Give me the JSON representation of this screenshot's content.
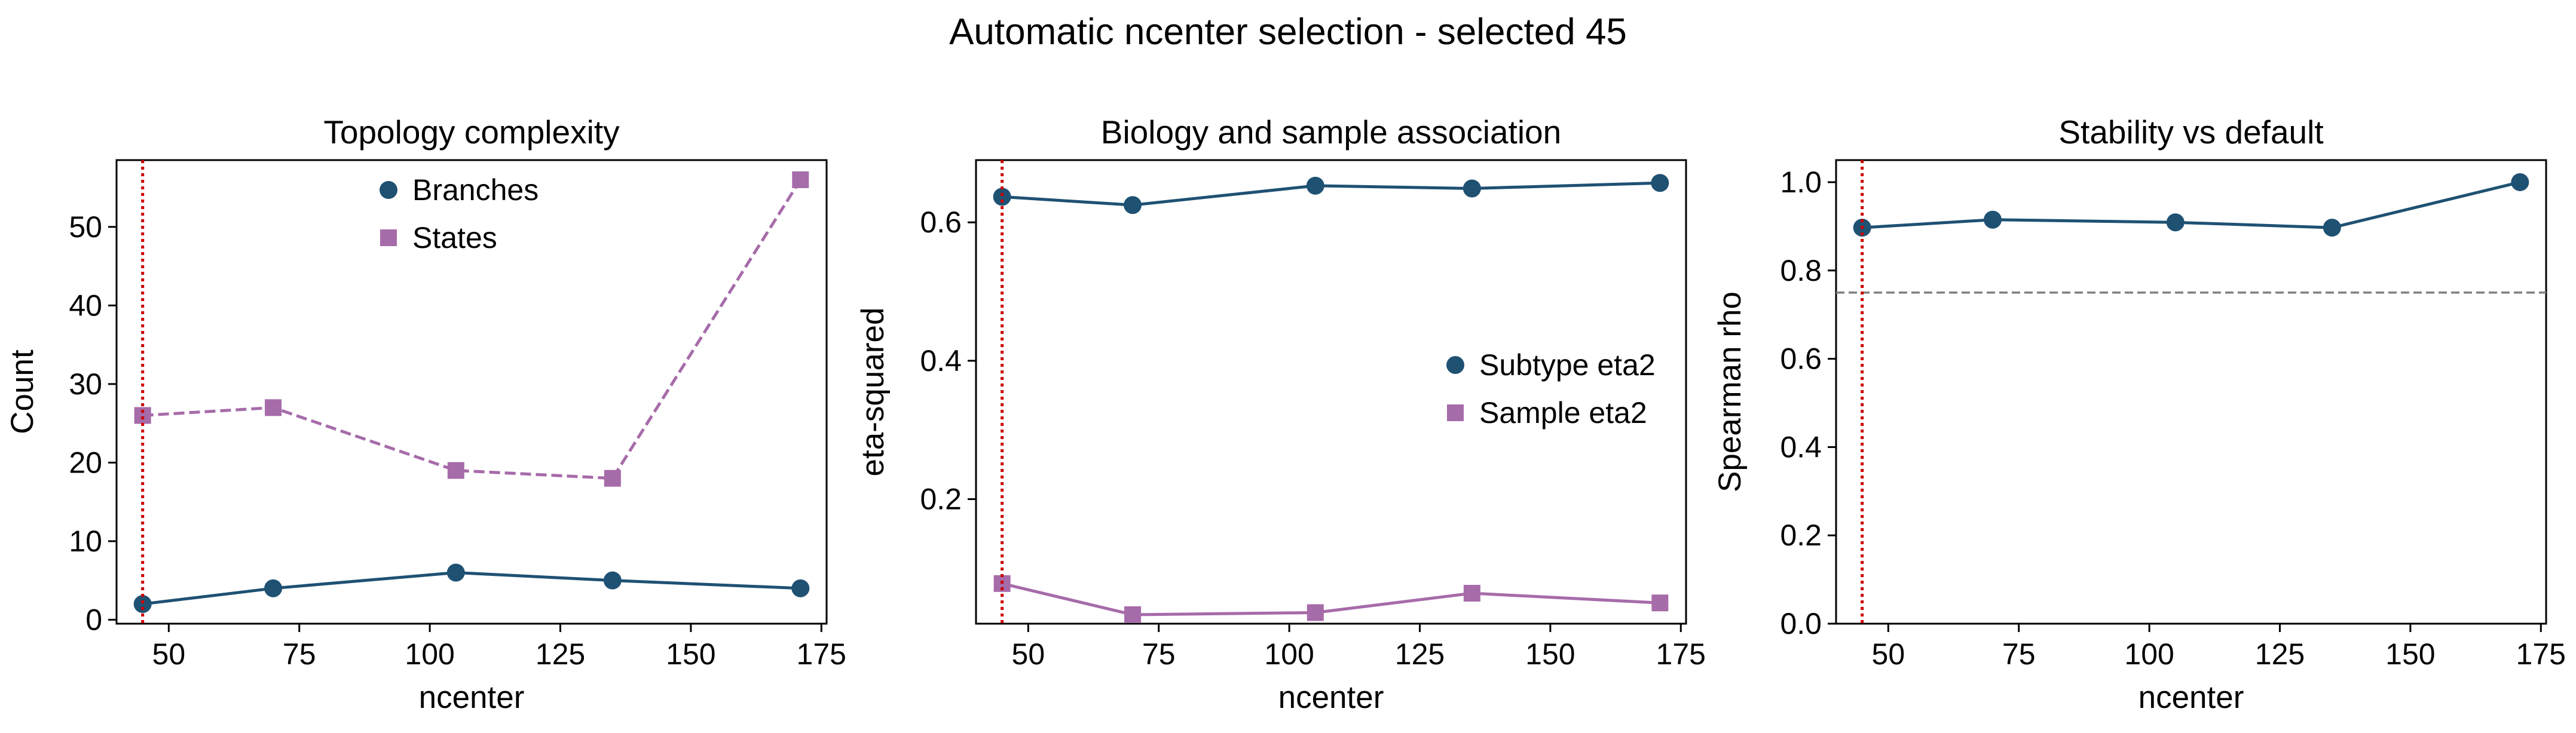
{
  "suptitle": "Automatic ncenter selection - selected 45",
  "colors": {
    "blue": "#1f5173",
    "purple": "#a66ba9",
    "red": "#cc0000",
    "gray": "#808080"
  },
  "chart_data": [
    {
      "type": "line",
      "title": "Topology complexity",
      "xlabel": "ncenter",
      "ylabel": "Count",
      "xlim": [
        40,
        176
      ],
      "ylim": [
        -0.5,
        58.5
      ],
      "xticks": [
        50,
        75,
        100,
        125,
        150,
        175
      ],
      "yticks": [
        0,
        10,
        20,
        30,
        40,
        50
      ],
      "x": [
        45,
        70,
        105,
        135,
        171
      ],
      "series": [
        {
          "name": "Branches",
          "values": [
            2,
            4,
            6,
            5,
            4
          ],
          "color": "#1f5173",
          "marker": "circle",
          "dash": false
        },
        {
          "name": "States",
          "values": [
            26,
            27,
            19,
            18,
            56
          ],
          "color": "#a66ba9",
          "marker": "square",
          "dash": true
        }
      ],
      "vline": 45,
      "legend": "top-center",
      "grid": false
    },
    {
      "type": "line",
      "title": "Biology and sample association",
      "xlabel": "ncenter",
      "ylabel": "eta-squared",
      "xlim": [
        40,
        176
      ],
      "ylim": [
        0.02,
        0.69
      ],
      "xticks": [
        50,
        75,
        100,
        125,
        150,
        175
      ],
      "yticks": [
        0.2,
        0.4,
        0.6
      ],
      "x": [
        45,
        70,
        105,
        135,
        171
      ],
      "series": [
        {
          "name": "Subtype eta2",
          "values": [
            0.637,
            0.625,
            0.653,
            0.649,
            0.657
          ],
          "color": "#1f5173",
          "marker": "circle",
          "dash": false
        },
        {
          "name": "Sample eta2",
          "values": [
            0.078,
            0.033,
            0.036,
            0.064,
            0.05
          ],
          "color": "#a66ba9",
          "marker": "square",
          "dash": false
        }
      ],
      "vline": 45,
      "legend": "center-right",
      "grid": false
    },
    {
      "type": "line",
      "title": "Stability vs default",
      "xlabel": "ncenter",
      "ylabel": "Spearman rho",
      "xlim": [
        40,
        176
      ],
      "ylim": [
        0.0,
        1.05
      ],
      "xticks": [
        50,
        75,
        100,
        125,
        150,
        175
      ],
      "yticks": [
        0.0,
        0.2,
        0.4,
        0.6,
        0.8,
        1.0
      ],
      "x": [
        45,
        70,
        105,
        135,
        171
      ],
      "series": [
        {
          "values": [
            0.897,
            0.915,
            0.909,
            0.897,
            1.0
          ],
          "color": "#1f5173",
          "marker": "circle",
          "dash": false
        }
      ],
      "vline": 45,
      "hline": 0.75,
      "grid": false
    }
  ]
}
